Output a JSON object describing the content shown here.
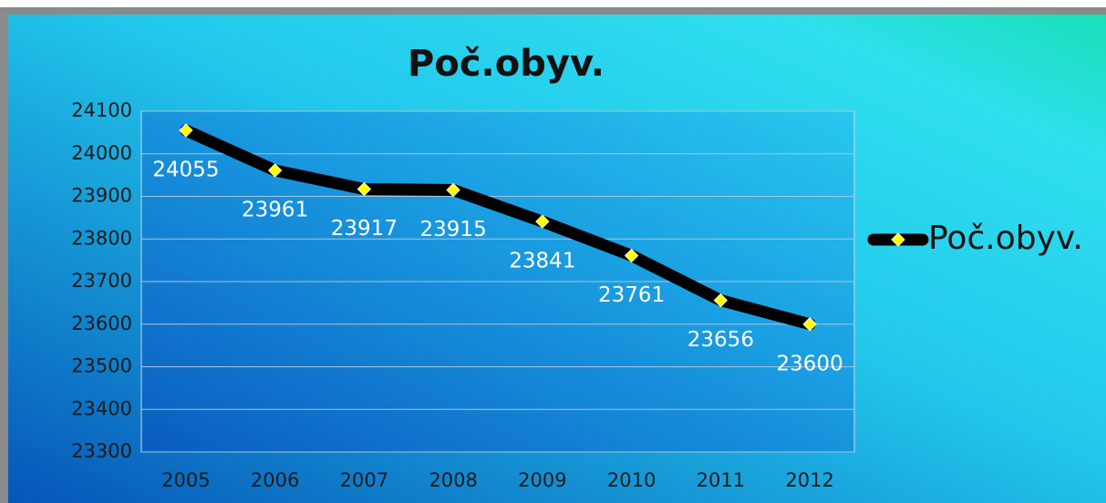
{
  "chart_data": {
    "type": "line",
    "title": "Poč.obyv.",
    "categories": [
      "2005",
      "2006",
      "2007",
      "2008",
      "2009",
      "2010",
      "2011",
      "2012"
    ],
    "series": [
      {
        "name": "Poč.obyv.",
        "color": "#000000",
        "marker_color": "#ffff00",
        "values": [
          24055,
          23961,
          23917,
          23915,
          23841,
          23761,
          23656,
          23600
        ]
      }
    ],
    "ylim": [
      23300,
      24100
    ],
    "yticks": [
      23300,
      23400,
      23500,
      23600,
      23700,
      23800,
      23900,
      24000,
      24100
    ],
    "grid": true,
    "legend": "right",
    "data_labels": true
  }
}
